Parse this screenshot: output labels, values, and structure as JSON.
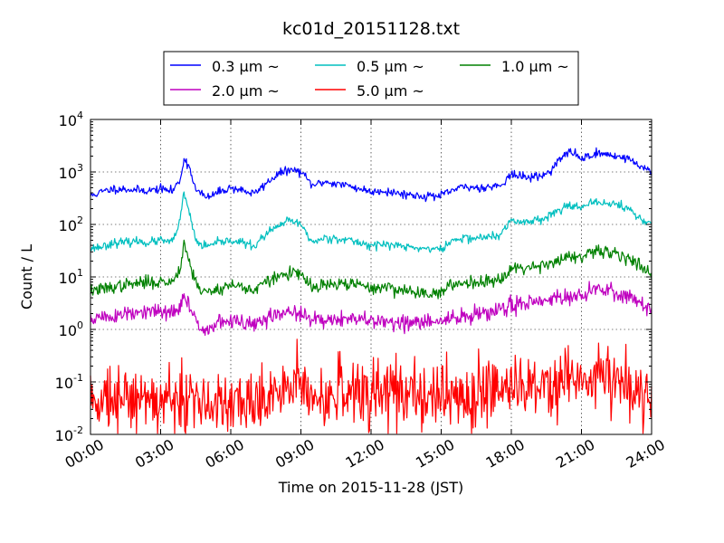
{
  "chart_data": {
    "type": "line",
    "title": "kc01d_20151128.txt",
    "xlabel": "Time on 2015-11-28 (JST)",
    "ylabel": "Count / L",
    "x_scale": "time",
    "y_scale": "log",
    "xlim": [
      "00:00",
      "24:00"
    ],
    "ylim": [
      0.01,
      10000
    ],
    "grid": true,
    "legend_placement": "top-center",
    "x_ticks": [
      "00:00",
      "03:00",
      "06:00",
      "09:00",
      "12:00",
      "15:00",
      "18:00",
      "21:00",
      "24:00"
    ],
    "y_ticks": [
      {
        "value": 0.01,
        "base": "10",
        "exp": "-2"
      },
      {
        "value": 0.1,
        "base": "10",
        "exp": "-1"
      },
      {
        "value": 1,
        "base": "10",
        "exp": "0"
      },
      {
        "value": 10,
        "base": "10",
        "exp": "1"
      },
      {
        "value": 100,
        "base": "10",
        "exp": "2"
      },
      {
        "value": 1000,
        "base": "10",
        "exp": "3"
      },
      {
        "value": 10000,
        "base": "10",
        "exp": "4"
      }
    ],
    "series": [
      {
        "name": "0.3 μm ~",
        "color": "#0000ff",
        "jitter": 0.04,
        "seed": 11,
        "x": [
          "00:00",
          "00:30",
          "01:00",
          "01:30",
          "02:00",
          "02:30",
          "03:00",
          "03:30",
          "03:50",
          "04:00",
          "04:15",
          "04:30",
          "04:45",
          "05:00",
          "05:30",
          "06:00",
          "06:30",
          "07:00",
          "07:30",
          "08:00",
          "08:30",
          "09:00",
          "09:30",
          "10:00",
          "10:30",
          "11:00",
          "11:30",
          "12:00",
          "12:30",
          "13:00",
          "13:30",
          "14:00",
          "14:30",
          "15:00",
          "15:30",
          "16:00",
          "16:30",
          "17:00",
          "17:30",
          "18:00",
          "18:30",
          "19:00",
          "19:30",
          "20:00",
          "20:30",
          "21:00",
          "21:30",
          "22:00",
          "22:30",
          "23:00",
          "23:30",
          "24:00"
        ],
        "y": [
          350,
          420,
          480,
          470,
          450,
          440,
          480,
          430,
          700,
          1800,
          1200,
          450,
          380,
          320,
          420,
          500,
          450,
          380,
          600,
          900,
          1100,
          1000,
          550,
          650,
          600,
          550,
          480,
          420,
          440,
          400,
          380,
          350,
          350,
          350,
          450,
          520,
          500,
          520,
          550,
          900,
          800,
          800,
          900,
          1600,
          2500,
          1800,
          2200,
          2200,
          2000,
          1800,
          1300,
          1050
        ]
      },
      {
        "name": "0.5 μm ~",
        "color": "#00bfbf",
        "jitter": 0.04,
        "seed": 23,
        "x": [
          "00:00",
          "00:30",
          "01:00",
          "01:30",
          "02:00",
          "02:30",
          "03:00",
          "03:30",
          "03:50",
          "04:00",
          "04:15",
          "04:30",
          "04:45",
          "05:00",
          "05:30",
          "06:00",
          "06:30",
          "07:00",
          "07:30",
          "08:00",
          "08:30",
          "09:00",
          "09:30",
          "10:00",
          "10:30",
          "11:00",
          "11:30",
          "12:00",
          "12:30",
          "13:00",
          "13:30",
          "14:00",
          "14:30",
          "15:00",
          "15:30",
          "16:00",
          "16:30",
          "17:00",
          "17:30",
          "18:00",
          "18:30",
          "19:00",
          "19:30",
          "20:00",
          "20:30",
          "21:00",
          "21:30",
          "22:00",
          "22:30",
          "23:00",
          "23:30",
          "24:00"
        ],
        "y": [
          35,
          38,
          45,
          45,
          48,
          45,
          50,
          45,
          120,
          400,
          150,
          50,
          40,
          38,
          45,
          50,
          45,
          38,
          65,
          90,
          120,
          100,
          45,
          55,
          55,
          50,
          45,
          40,
          42,
          40,
          38,
          35,
          35,
          33,
          50,
          55,
          55,
          58,
          60,
          120,
          110,
          120,
          140,
          180,
          250,
          200,
          260,
          260,
          240,
          200,
          130,
          100
        ]
      },
      {
        "name": "1.0 μm ~",
        "color": "#008000",
        "jitter": 0.06,
        "seed": 37,
        "x": [
          "00:00",
          "00:30",
          "01:00",
          "01:30",
          "02:00",
          "02:30",
          "03:00",
          "03:30",
          "03:50",
          "04:00",
          "04:15",
          "04:30",
          "04:45",
          "05:00",
          "05:30",
          "06:00",
          "06:30",
          "07:00",
          "07:30",
          "08:00",
          "08:30",
          "09:00",
          "09:30",
          "10:00",
          "10:30",
          "11:00",
          "11:30",
          "12:00",
          "12:30",
          "13:00",
          "13:30",
          "14:00",
          "14:30",
          "15:00",
          "15:30",
          "16:00",
          "16:30",
          "17:00",
          "17:30",
          "18:00",
          "18:30",
          "19:00",
          "19:30",
          "20:00",
          "20:30",
          "21:00",
          "21:30",
          "22:00",
          "22:30",
          "23:00",
          "23:30",
          "24:00"
        ],
        "y": [
          5.5,
          5.8,
          6.5,
          7,
          7.5,
          8,
          8,
          8,
          15,
          45,
          18,
          8,
          5.5,
          5,
          6,
          7,
          6.5,
          5.5,
          8,
          10,
          12,
          11,
          6,
          7,
          7,
          7.5,
          7,
          6,
          6.5,
          6,
          5.5,
          5,
          5,
          5,
          7,
          8,
          8,
          8.5,
          9,
          15,
          15,
          16,
          18,
          20,
          25,
          22,
          30,
          30,
          28,
          24,
          16,
          12
        ]
      },
      {
        "name": "2.0 μm ~",
        "color": "#bf00bf",
        "jitter": 0.08,
        "seed": 51,
        "x": [
          "00:00",
          "00:30",
          "01:00",
          "01:30",
          "02:00",
          "02:30",
          "03:00",
          "03:30",
          "03:50",
          "04:00",
          "04:15",
          "04:30",
          "04:45",
          "05:00",
          "05:30",
          "06:00",
          "06:30",
          "07:00",
          "07:30",
          "08:00",
          "08:30",
          "09:00",
          "09:30",
          "10:00",
          "10:30",
          "11:00",
          "11:30",
          "12:00",
          "12:30",
          "13:00",
          "13:30",
          "14:00",
          "14:30",
          "15:00",
          "15:30",
          "16:00",
          "16:30",
          "17:00",
          "17:30",
          "18:00",
          "18:30",
          "19:00",
          "19:30",
          "20:00",
          "20:30",
          "21:00",
          "21:30",
          "22:00",
          "22:30",
          "23:00",
          "23:30",
          "24:00"
        ],
        "y": [
          1.6,
          1.7,
          1.8,
          1.9,
          2,
          2.1,
          2.2,
          2,
          2.5,
          4.5,
          2.5,
          1.5,
          1.2,
          1,
          1.3,
          1.5,
          1.3,
          1.2,
          1.6,
          1.9,
          2.2,
          2,
          1.4,
          1.6,
          1.6,
          1.6,
          1.5,
          1.4,
          1.5,
          1.4,
          1.3,
          1.3,
          1.4,
          1.4,
          1.6,
          1.8,
          1.9,
          2,
          2.3,
          3,
          3.2,
          3.5,
          3.8,
          4,
          4.5,
          4.2,
          5.5,
          5.5,
          5,
          4.5,
          3,
          2.3
        ]
      },
      {
        "name": "5.0 μm ~",
        "color": "#ff0000",
        "jitter": 0.32,
        "seed": 73,
        "x": [
          "00:00",
          "01:00",
          "02:00",
          "03:00",
          "04:00",
          "05:00",
          "06:00",
          "07:00",
          "08:00",
          "09:00",
          "10:00",
          "11:00",
          "12:00",
          "13:00",
          "14:00",
          "15:00",
          "16:00",
          "17:00",
          "18:00",
          "19:00",
          "20:00",
          "21:00",
          "22:00",
          "23:00",
          "24:00"
        ],
        "y": [
          0.05,
          0.06,
          0.05,
          0.045,
          0.045,
          0.035,
          0.04,
          0.045,
          0.06,
          0.07,
          0.06,
          0.065,
          0.07,
          0.06,
          0.055,
          0.045,
          0.06,
          0.08,
          0.09,
          0.1,
          0.1,
          0.12,
          0.1,
          0.08,
          0.05
        ]
      }
    ]
  }
}
